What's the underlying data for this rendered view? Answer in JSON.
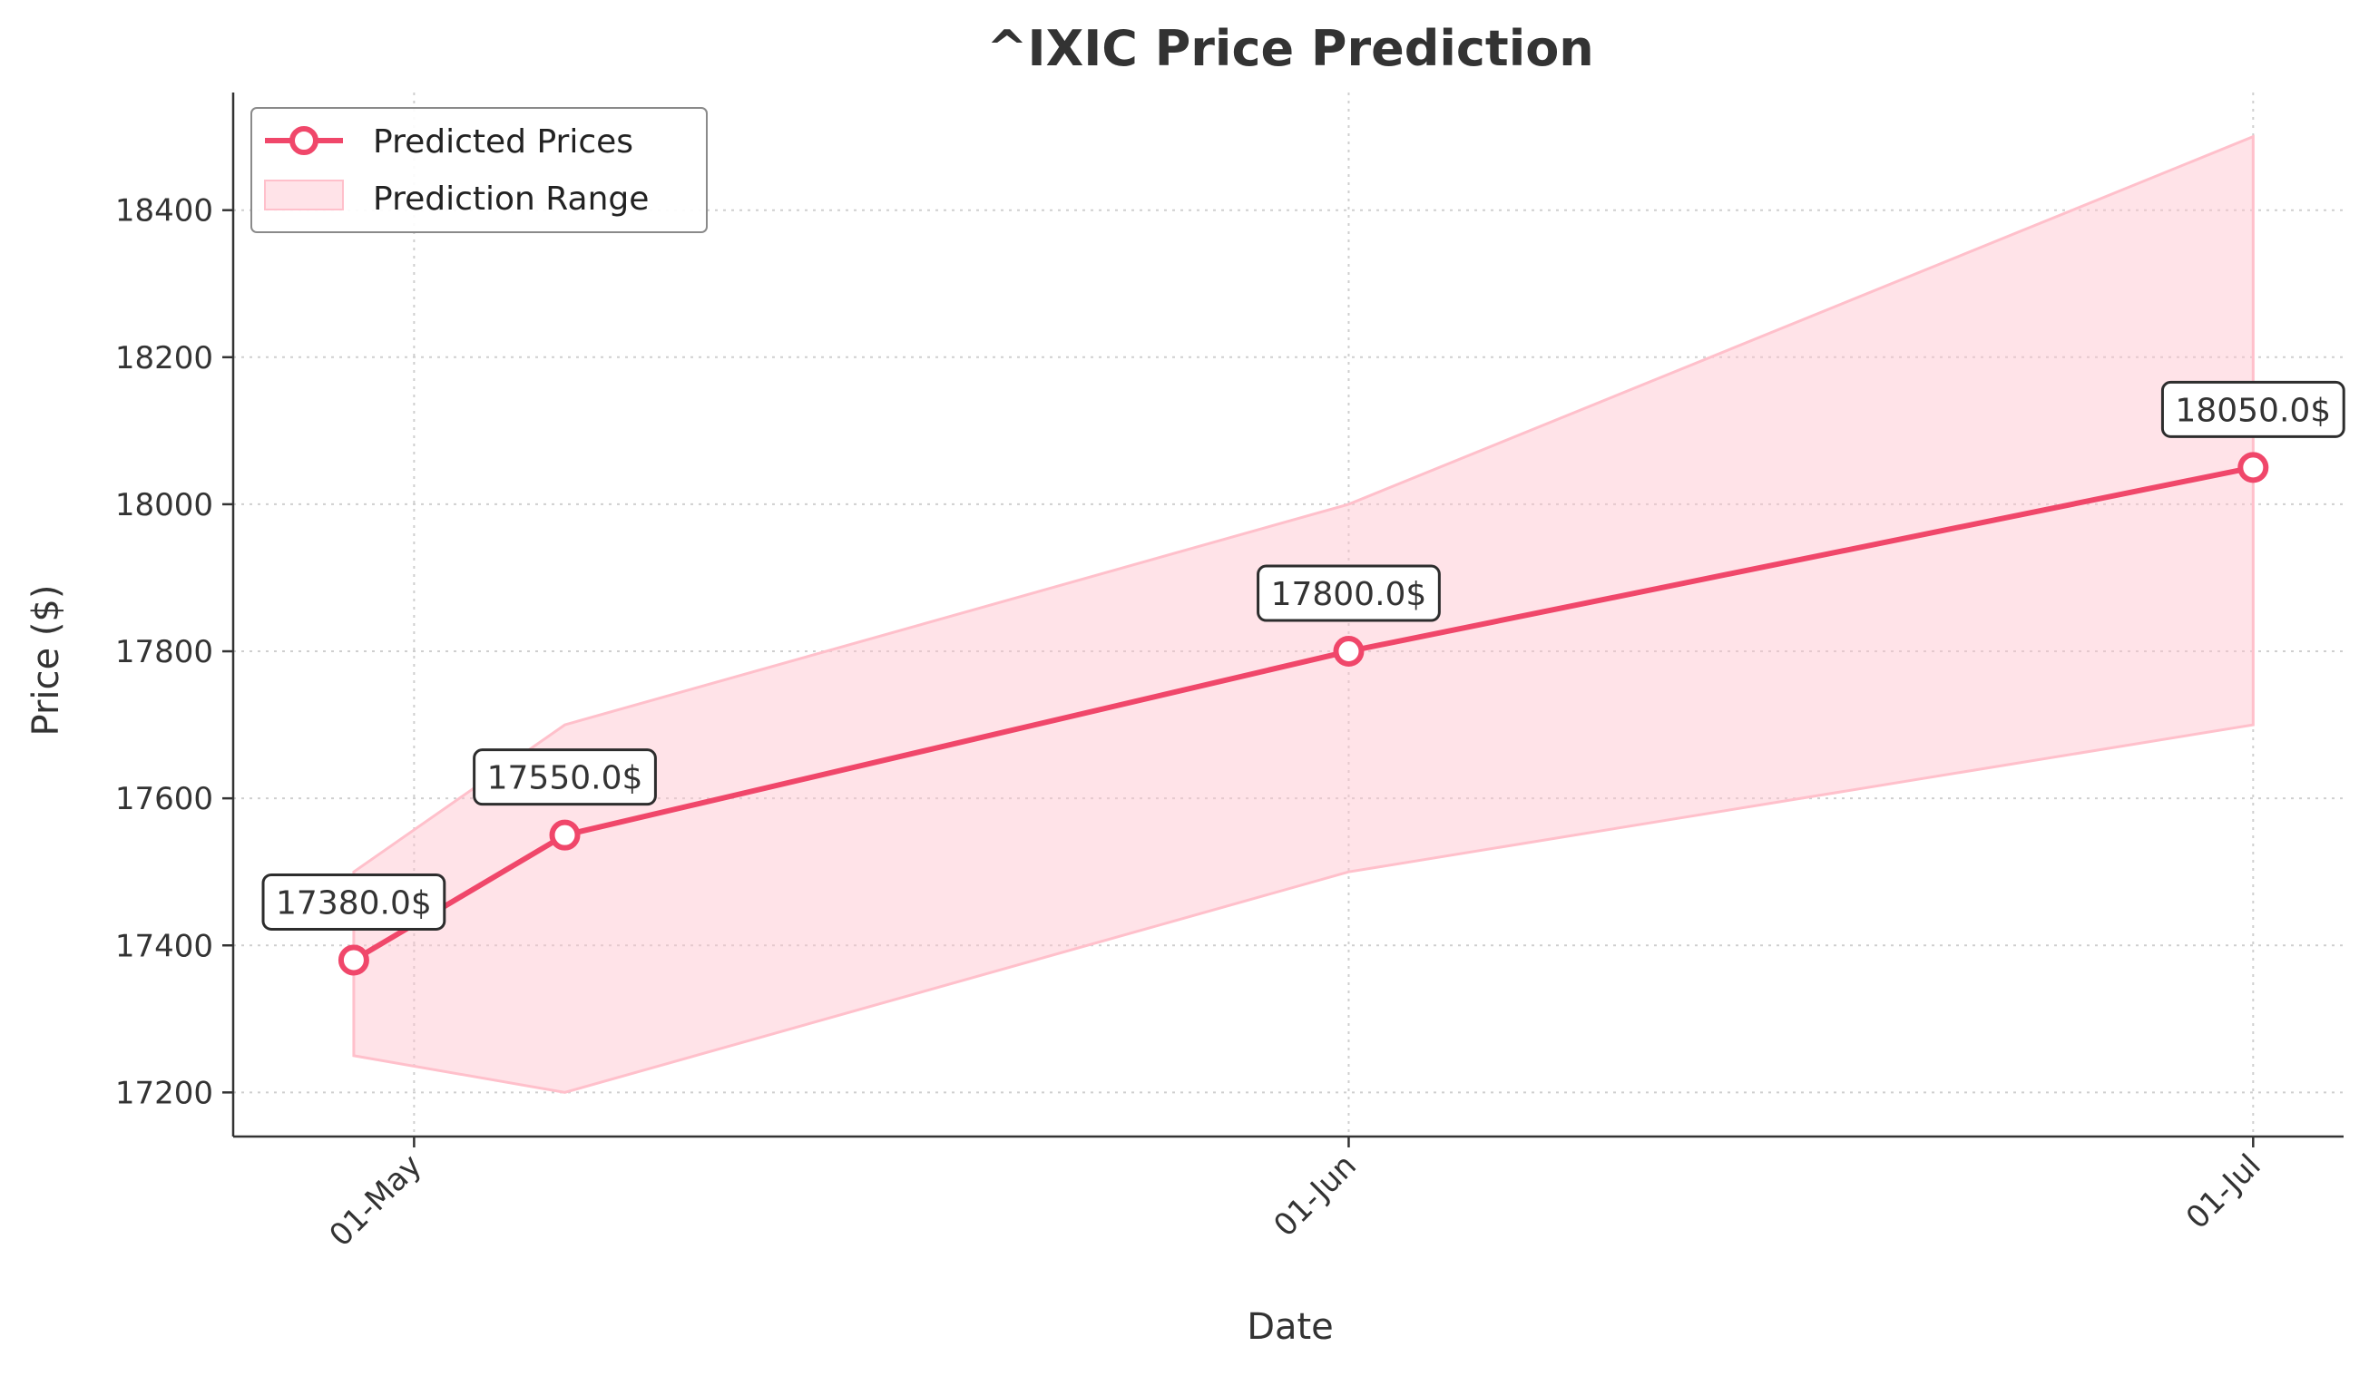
{
  "chart_data": {
    "type": "line",
    "title": "^IXIC Price Prediction",
    "xlabel": "Date",
    "ylabel": "Price ($)",
    "x_ticks": [
      {
        "date": "2024-05-01",
        "label": "01-May"
      },
      {
        "date": "2024-06-01",
        "label": "01-Jun"
      },
      {
        "date": "2024-07-01",
        "label": "01-Jul"
      }
    ],
    "xlim": [
      "2024-04-25",
      "2024-07-04"
    ],
    "y_ticks": [
      17200,
      17400,
      17600,
      17800,
      18000,
      18200,
      18400
    ],
    "ylim": [
      17140,
      18560
    ],
    "grid": true,
    "legend_position": "top-left",
    "series": [
      {
        "name": "Predicted Prices",
        "color": "#f0476a",
        "marker": "circle",
        "points": [
          {
            "x": "2024-04-29",
            "y": 17380,
            "label": "17380.0$"
          },
          {
            "x": "2024-05-06",
            "y": 17550,
            "label": "17550.0$"
          },
          {
            "x": "2024-06-01",
            "y": 17800,
            "label": "17800.0$"
          },
          {
            "x": "2024-07-01",
            "y": 18050,
            "label": "18050.0$"
          }
        ]
      }
    ],
    "range": {
      "name": "Prediction Range",
      "color": "#ffc0cb",
      "points": [
        {
          "x": "2024-04-29",
          "low": 17250,
          "high": 17500
        },
        {
          "x": "2024-05-06",
          "low": 17200,
          "high": 17700
        },
        {
          "x": "2024-06-01",
          "low": 17500,
          "high": 18000
        },
        {
          "x": "2024-07-01",
          "low": 17700,
          "high": 18500
        }
      ]
    }
  }
}
